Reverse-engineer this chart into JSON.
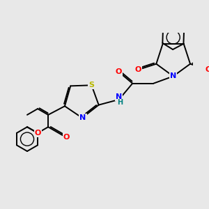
{
  "background_color": "#e8e8e8",
  "bond_color": "#000000",
  "atom_colors": {
    "O": "#ff0000",
    "N": "#0000ff",
    "S": "#b8b800",
    "H": "#008080",
    "C": "#000000"
  },
  "bond_width": 1.4,
  "figsize": [
    3.0,
    3.0
  ],
  "dpi": 100
}
